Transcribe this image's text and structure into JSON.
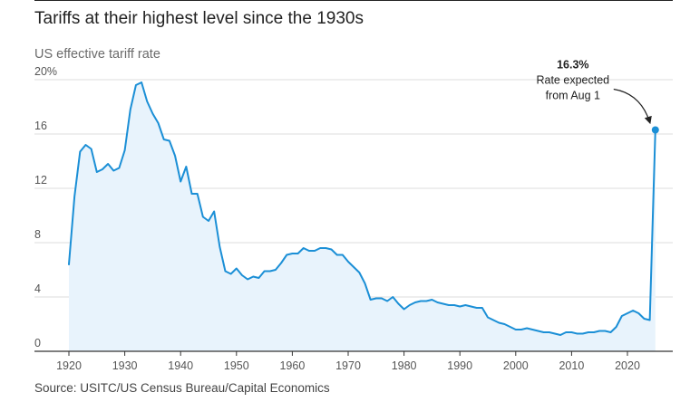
{
  "header": {
    "title": "Tariffs at their highest level since the 1930s",
    "subtitle": "US effective tariff rate"
  },
  "footer": {
    "source": "Source: USITC/US Census Bureau/Capital Economics"
  },
  "colors": {
    "line": "#1b8fd6",
    "area": "#e8f3fc",
    "grid": "#dddddd",
    "axis": "#333333",
    "text": "#222222"
  },
  "chart_data": {
    "type": "area",
    "title": "Tariffs at their highest level since the 1930s",
    "subtitle": "US effective tariff rate",
    "xlabel": "",
    "ylabel": "",
    "xlim": [
      1920,
      2026
    ],
    "ylim": [
      0,
      20
    ],
    "x_ticks": [
      1920,
      1930,
      1940,
      1950,
      1960,
      1970,
      1980,
      1990,
      2000,
      2010,
      2020
    ],
    "y_ticks": [
      {
        "value": 0,
        "label": "0"
      },
      {
        "value": 4,
        "label": "4"
      },
      {
        "value": 8,
        "label": "8"
      },
      {
        "value": 12,
        "label": "12"
      },
      {
        "value": 16,
        "label": "16"
      },
      {
        "value": 20,
        "label": "20%"
      }
    ],
    "grid": true,
    "series": [
      {
        "name": "US effective tariff rate",
        "points": [
          [
            1920,
            6.4
          ],
          [
            1921,
            11.4
          ],
          [
            1922,
            14.7
          ],
          [
            1923,
            15.2
          ],
          [
            1924,
            14.9
          ],
          [
            1925,
            13.2
          ],
          [
            1926,
            13.4
          ],
          [
            1927,
            13.8
          ],
          [
            1928,
            13.3
          ],
          [
            1929,
            13.5
          ],
          [
            1930,
            14.8
          ],
          [
            1931,
            17.8
          ],
          [
            1932,
            19.6
          ],
          [
            1933,
            19.8
          ],
          [
            1934,
            18.4
          ],
          [
            1935,
            17.5
          ],
          [
            1936,
            16.8
          ],
          [
            1937,
            15.6
          ],
          [
            1938,
            15.5
          ],
          [
            1939,
            14.4
          ],
          [
            1940,
            12.5
          ],
          [
            1941,
            13.6
          ],
          [
            1942,
            11.6
          ],
          [
            1943,
            11.6
          ],
          [
            1944,
            9.9
          ],
          [
            1945,
            9.6
          ],
          [
            1946,
            10.3
          ],
          [
            1947,
            7.7
          ],
          [
            1948,
            5.9
          ],
          [
            1949,
            5.7
          ],
          [
            1950,
            6.1
          ],
          [
            1951,
            5.6
          ],
          [
            1952,
            5.3
          ],
          [
            1953,
            5.5
          ],
          [
            1954,
            5.4
          ],
          [
            1955,
            5.9
          ],
          [
            1956,
            5.9
          ],
          [
            1957,
            6.0
          ],
          [
            1958,
            6.5
          ],
          [
            1959,
            7.1
          ],
          [
            1960,
            7.2
          ],
          [
            1961,
            7.2
          ],
          [
            1962,
            7.6
          ],
          [
            1963,
            7.4
          ],
          [
            1964,
            7.4
          ],
          [
            1965,
            7.6
          ],
          [
            1966,
            7.6
          ],
          [
            1967,
            7.5
          ],
          [
            1968,
            7.1
          ],
          [
            1969,
            7.1
          ],
          [
            1970,
            6.6
          ],
          [
            1971,
            6.2
          ],
          [
            1972,
            5.8
          ],
          [
            1973,
            5.0
          ],
          [
            1974,
            3.8
          ],
          [
            1975,
            3.9
          ],
          [
            1976,
            3.9
          ],
          [
            1977,
            3.7
          ],
          [
            1978,
            4.0
          ],
          [
            1979,
            3.5
          ],
          [
            1980,
            3.1
          ],
          [
            1981,
            3.4
          ],
          [
            1982,
            3.6
          ],
          [
            1983,
            3.7
          ],
          [
            1984,
            3.7
          ],
          [
            1985,
            3.8
          ],
          [
            1986,
            3.6
          ],
          [
            1987,
            3.5
          ],
          [
            1988,
            3.4
          ],
          [
            1989,
            3.4
          ],
          [
            1990,
            3.3
          ],
          [
            1991,
            3.4
          ],
          [
            1992,
            3.3
          ],
          [
            1993,
            3.2
          ],
          [
            1994,
            3.2
          ],
          [
            1995,
            2.5
          ],
          [
            1996,
            2.3
          ],
          [
            1997,
            2.1
          ],
          [
            1998,
            2.0
          ],
          [
            1999,
            1.8
          ],
          [
            2000,
            1.6
          ],
          [
            2001,
            1.6
          ],
          [
            2002,
            1.7
          ],
          [
            2003,
            1.6
          ],
          [
            2004,
            1.5
          ],
          [
            2005,
            1.4
          ],
          [
            2006,
            1.4
          ],
          [
            2007,
            1.3
          ],
          [
            2008,
            1.2
          ],
          [
            2009,
            1.4
          ],
          [
            2010,
            1.4
          ],
          [
            2011,
            1.3
          ],
          [
            2012,
            1.3
          ],
          [
            2013,
            1.4
          ],
          [
            2014,
            1.4
          ],
          [
            2015,
            1.5
          ],
          [
            2016,
            1.5
          ],
          [
            2017,
            1.4
          ],
          [
            2018,
            1.8
          ],
          [
            2019,
            2.6
          ],
          [
            2020,
            2.8
          ],
          [
            2021,
            3.0
          ],
          [
            2022,
            2.8
          ],
          [
            2023,
            2.4
          ],
          [
            2024,
            2.3
          ],
          [
            2025,
            16.3
          ]
        ]
      }
    ],
    "highlight": {
      "x": 2025,
      "y": 16.3
    },
    "annotation": {
      "value_label": "16.3%",
      "line1": "Rate expected",
      "line2": "from Aug 1"
    }
  }
}
